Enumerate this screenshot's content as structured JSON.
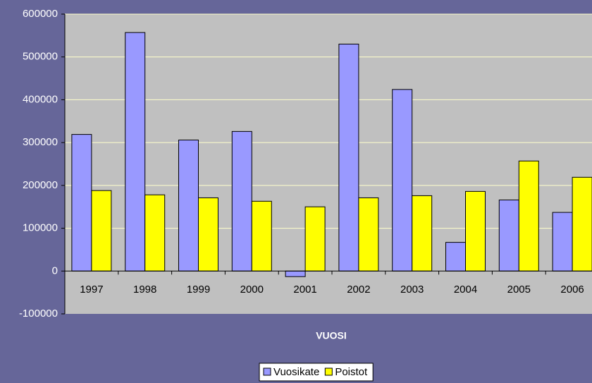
{
  "chart_data": {
    "type": "bar",
    "x_label": "VUOSI",
    "categories": [
      "1997",
      "1998",
      "1999",
      "2000",
      "2001",
      "2002",
      "2003",
      "2004",
      "2005",
      "2006"
    ],
    "series": [
      {
        "name": "Vuosikate",
        "color": "#9999ff",
        "values": [
          319000,
          557000,
          306000,
          326000,
          -13000,
          530000,
          424000,
          67000,
          166000,
          137000
        ]
      },
      {
        "name": "Poistot",
        "color": "#ffff00",
        "values": [
          188000,
          178000,
          171000,
          163000,
          150000,
          171000,
          176000,
          186000,
          257000,
          219000
        ]
      }
    ],
    "ylim": [
      -100000,
      600000
    ],
    "yticks": [
      -100000,
      0,
      100000,
      200000,
      300000,
      400000,
      500000,
      600000
    ],
    "grid": true,
    "legend": "bottom"
  }
}
